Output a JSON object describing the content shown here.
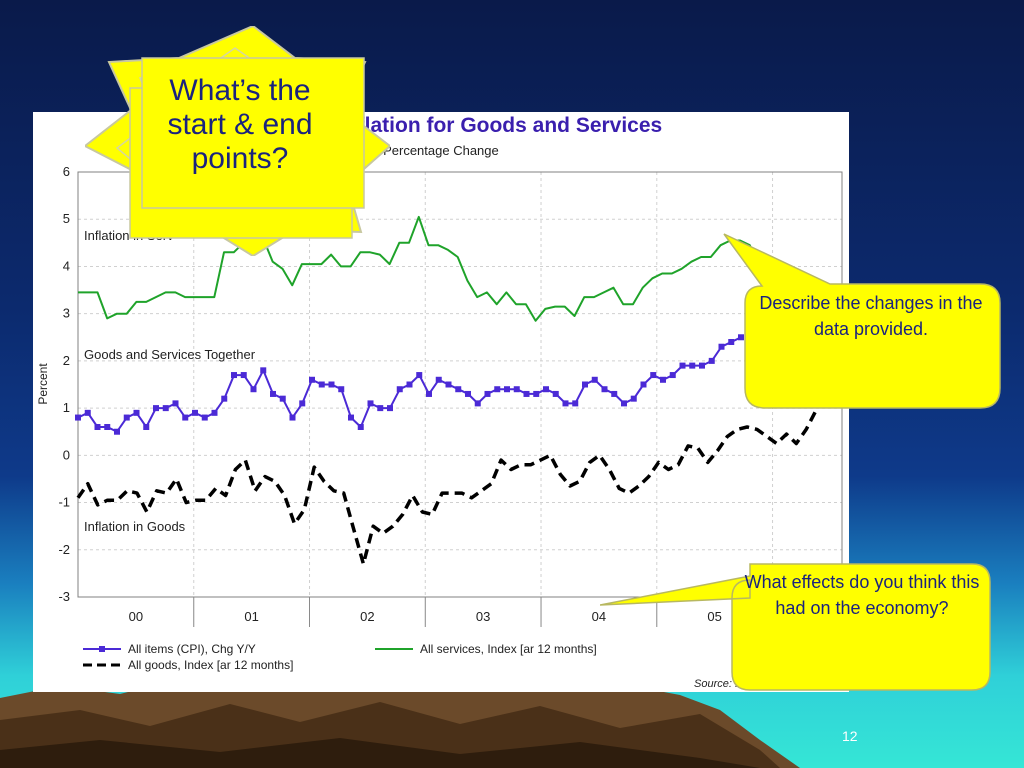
{
  "slide": {
    "number": "12"
  },
  "starburst": {
    "text": "What’s the start & end points?"
  },
  "callouts": {
    "describe": "Describe the changes in the data provided.",
    "effects": "What effects do you think this had on the economy?"
  },
  "chart_data": {
    "type": "line",
    "title": "Inflation for Goods and Services",
    "subtitle": "Annual Percentage Change",
    "ylabel": "Percent",
    "xlabel": "",
    "ylim": [
      -3,
      6
    ],
    "yticks": [
      "6",
      "5",
      "4",
      "3",
      "2",
      "1",
      "0",
      "-1",
      "-2",
      "-3"
    ],
    "x_tick_labels": [
      "00",
      "01",
      "02",
      "03",
      "04",
      "05"
    ],
    "grid": true,
    "source": "Source: R",
    "annotations": {
      "services": "Inflation in Serv",
      "together": "Goods and Services Together",
      "goods": "Inflation in Goods"
    },
    "series": [
      {
        "name": "All items (CPI), Chg Y/Y",
        "color": "#4b2ad6",
        "style": "line-square-markers",
        "values": [
          0.8,
          0.9,
          0.6,
          0.6,
          0.5,
          0.8,
          0.9,
          0.6,
          1.0,
          1.0,
          1.1,
          0.8,
          0.9,
          0.8,
          0.9,
          1.2,
          1.7,
          1.7,
          1.4,
          1.8,
          1.3,
          1.2,
          0.8,
          1.1,
          1.6,
          1.5,
          1.5,
          1.4,
          0.8,
          0.6,
          1.1,
          1.0,
          1.0,
          1.4,
          1.5,
          1.7,
          1.3,
          1.6,
          1.5,
          1.4,
          1.3,
          1.1,
          1.3,
          1.4,
          1.4,
          1.4,
          1.3,
          1.3,
          1.4,
          1.3,
          1.1,
          1.1,
          1.5,
          1.6,
          1.4,
          1.3,
          1.1,
          1.2,
          1.5,
          1.7,
          1.6,
          1.7,
          1.9,
          1.9,
          1.9,
          2.0,
          2.3,
          2.4,
          2.5
        ]
      },
      {
        "name": "All services, Index [ar 12 months]",
        "color": "#1fa32a",
        "style": "solid",
        "values": [
          3.45,
          3.45,
          3.45,
          2.9,
          3.0,
          3.0,
          3.25,
          3.25,
          3.35,
          3.45,
          3.45,
          3.35,
          3.35,
          3.35,
          3.35,
          4.3,
          4.3,
          4.5,
          4.75,
          4.6,
          4.1,
          3.95,
          3.6,
          4.05,
          4.05,
          4.05,
          4.25,
          4.0,
          4.0,
          4.3,
          4.3,
          4.25,
          4.05,
          4.5,
          4.5,
          5.05,
          4.45,
          4.45,
          4.35,
          4.2,
          3.7,
          3.35,
          3.45,
          3.2,
          3.45,
          3.2,
          3.2,
          2.85,
          3.1,
          3.15,
          3.15,
          2.95,
          3.35,
          3.35,
          3.45,
          3.55,
          3.2,
          3.2,
          3.55,
          3.75,
          3.85,
          3.85,
          3.95,
          4.1,
          4.2,
          4.2,
          4.45,
          4.55,
          4.55,
          4.45,
          4.0,
          3.8,
          3.9
        ]
      },
      {
        "name": "All goods, Index [ar 12 months]",
        "color": "#000000",
        "style": "dashed",
        "values": [
          -0.9,
          -0.6,
          -1.05,
          -0.95,
          -0.95,
          -0.75,
          -0.8,
          -1.2,
          -0.75,
          -0.8,
          -0.5,
          -1.0,
          -0.95,
          -0.95,
          -0.7,
          -0.85,
          -0.3,
          -0.1,
          -0.75,
          -0.45,
          -0.55,
          -0.85,
          -1.45,
          -1.15,
          -0.25,
          -0.55,
          -0.75,
          -0.8,
          -1.55,
          -2.3,
          -1.5,
          -1.65,
          -1.5,
          -1.25,
          -0.85,
          -1.2,
          -1.25,
          -0.8,
          -0.8,
          -0.8,
          -0.9,
          -0.75,
          -0.6,
          -0.1,
          -0.3,
          -0.2,
          -0.2,
          -0.1,
          0.0,
          -0.4,
          -0.65,
          -0.55,
          -0.15,
          0.0,
          -0.3,
          -0.7,
          -0.8,
          -0.65,
          -0.45,
          -0.15,
          -0.3,
          -0.2,
          0.2,
          0.15,
          -0.15,
          0.1,
          0.4,
          0.55,
          0.6,
          0.55,
          0.4,
          0.25,
          0.45,
          0.25,
          0.55,
          0.95
        ]
      }
    ]
  }
}
